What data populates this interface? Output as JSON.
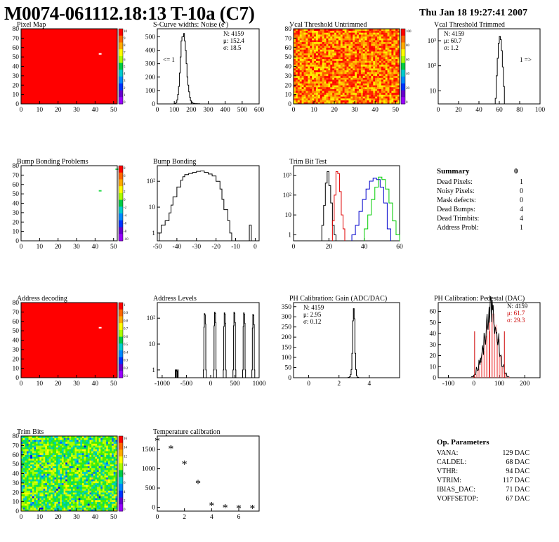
{
  "header": {
    "title": "M0074-061112.18:13 T-10a (C7)",
    "timestamp": "Thu Jan 18 19:27:41 2007"
  },
  "colors": {
    "map_red": "#ff0000",
    "hist_line": "#000000",
    "trim_red": "#e00000",
    "trim_blue": "#0000cc",
    "trim_green": "#00cc00",
    "pedestal_mean": "#cc0000"
  },
  "chart_data": [
    {
      "id": "pixel-map",
      "type": "heatmap",
      "title": "Pixel Map",
      "xticks": [
        "0",
        "10",
        "20",
        "30",
        "40",
        "50"
      ],
      "yticks": [
        "0",
        "10",
        "20",
        "30",
        "40",
        "50",
        "60",
        "70",
        "80"
      ],
      "xlim": [
        0,
        52
      ],
      "ylim": [
        0,
        80
      ],
      "fill": "uniform 10 (all pixels alive)",
      "hot_pixel": {
        "col": 42,
        "row": 53
      },
      "palette_labels": [
        "10",
        "9",
        "8",
        "7",
        "6",
        "5",
        "4",
        "3",
        "2",
        "1",
        "0"
      ]
    },
    {
      "id": "scurve-widths",
      "type": "histogram",
      "title": "S-Curve widths: Noise (e )",
      "xticks": [
        "0",
        "100",
        "200",
        "300",
        "400",
        "500",
        "600"
      ],
      "yticks": [
        "0",
        "100",
        "200",
        "300",
        "400",
        "500"
      ],
      "xlim": [
        0,
        600
      ],
      "ylim": [
        0,
        560
      ],
      "stats": [
        "N: 4159",
        "μ: 152.4",
        "σ: 18.5"
      ],
      "underflow_label": "<= 1",
      "x": [
        0,
        90,
        100,
        110,
        115,
        120,
        125,
        130,
        135,
        140,
        145,
        150,
        155,
        160,
        165,
        170,
        175,
        180,
        185,
        190,
        195,
        200,
        205,
        210,
        220,
        235,
        250,
        600
      ],
      "values": [
        0,
        0,
        3,
        10,
        30,
        70,
        130,
        230,
        350,
        470,
        500,
        500,
        525,
        470,
        400,
        300,
        200,
        140,
        90,
        50,
        25,
        15,
        8,
        4,
        2,
        1,
        0
      ]
    },
    {
      "id": "vcal-untrimmed",
      "type": "heatmap",
      "title": "Vcal Threshold Untrimmed",
      "xticks": [
        "0",
        "10",
        "20",
        "30",
        "40",
        "50"
      ],
      "yticks": [
        "0",
        "10",
        "20",
        "30",
        "40",
        "50",
        "60",
        "70",
        "80"
      ],
      "xlim": [
        0,
        52
      ],
      "ylim": [
        0,
        80
      ],
      "palette_labels": [
        "100",
        "80",
        "60",
        "40",
        "20",
        "0"
      ],
      "value_range": [
        0,
        110
      ],
      "value_center": 60
    },
    {
      "id": "vcal-trimmed",
      "type": "histogram",
      "title": "Vcal Threshold Trimmed",
      "log_y": true,
      "xticks": [
        "0",
        "20",
        "40",
        "60",
        "80",
        "100"
      ],
      "yticks": [
        "10",
        "10²",
        "10³"
      ],
      "xlim": [
        0,
        100
      ],
      "ylim": [
        3,
        3000
      ],
      "stats": [
        "N: 4159",
        "μ: 60.7",
        "σ:  1.2"
      ],
      "overflow_label": "1 =>",
      "x": [
        56,
        57,
        58,
        59,
        60,
        61,
        62,
        63,
        64,
        65,
        66
      ],
      "values": [
        5,
        40,
        200,
        800,
        1500,
        1100,
        400,
        90,
        15,
        3
      ]
    },
    {
      "id": "bump-problems",
      "type": "heatmap",
      "title": "Bump Bonding Problems",
      "xticks": [
        "0",
        "10",
        "20",
        "30",
        "40",
        "50"
      ],
      "yticks": [
        "0",
        "10",
        "20",
        "30",
        "40",
        "50",
        "60",
        "70",
        "80"
      ],
      "xlim": [
        0,
        52
      ],
      "ylim": [
        0,
        80
      ],
      "palette_labels": [
        "8",
        "6",
        "4",
        "2",
        "0",
        "-2",
        "-4",
        "-6",
        "-8",
        "-10"
      ],
      "marked_pixels": [
        {
          "col": 42,
          "row": 53
        },
        {
          "col": 51,
          "row": 76
        }
      ]
    },
    {
      "id": "bump-bonding",
      "type": "histogram",
      "title": "Bump Bonding",
      "log_y": true,
      "xticks": [
        "-50",
        "-40",
        "-30",
        "-20",
        "-10",
        "0"
      ],
      "yticks": [
        "1",
        "10",
        "10²"
      ],
      "xlim": [
        -50,
        2
      ],
      "ylim": [
        0.5,
        400
      ],
      "x": [
        -49,
        -48,
        -46,
        -44,
        -43,
        -42,
        -40,
        -38,
        -37,
        -36,
        -34,
        -32,
        -30,
        -28,
        -26,
        -24,
        -22,
        -20,
        -18,
        -17,
        -16,
        -14,
        -13,
        -12,
        -3,
        -2,
        -1
      ],
      "values": [
        1,
        2,
        3,
        6,
        12,
        25,
        60,
        110,
        150,
        180,
        200,
        220,
        240,
        250,
        220,
        190,
        160,
        100,
        50,
        20,
        8,
        3,
        1,
        0,
        2,
        0
      ]
    },
    {
      "id": "trim-bit-test",
      "type": "histogram",
      "title": "Trim Bit Test",
      "log_y": true,
      "xticks": [
        "0",
        "20",
        "40",
        "60"
      ],
      "yticks": [
        "1",
        "10",
        "10²",
        "10³"
      ],
      "xlim": [
        0,
        60
      ],
      "ylim": [
        0.5,
        3000
      ],
      "series": [
        {
          "color": "#000000",
          "x": [
            16,
            17,
            18,
            19,
            20,
            21,
            22,
            23,
            24
          ],
          "values": [
            3,
            30,
            400,
            1500,
            300,
            40,
            3,
            1
          ]
        },
        {
          "color": "#e00000",
          "x": [
            22,
            23,
            24,
            25,
            26,
            27,
            28,
            29
          ],
          "values": [
            5,
            100,
            1500,
            1200,
            150,
            10,
            2
          ]
        },
        {
          "color": "#0000cc",
          "x": [
            33,
            35,
            37,
            39,
            41,
            43,
            45,
            47,
            49,
            51,
            53,
            55
          ],
          "values": [
            1,
            3,
            15,
            60,
            200,
            500,
            700,
            600,
            250,
            40,
            2
          ]
        },
        {
          "color": "#00cc00",
          "x": [
            40,
            42,
            44,
            46,
            48,
            50,
            52,
            54,
            56,
            58,
            60
          ],
          "values": [
            2,
            10,
            60,
            250,
            800,
            600,
            200,
            40,
            5,
            1
          ]
        }
      ]
    },
    {
      "id": "address-decoding",
      "type": "heatmap",
      "title": "Address decoding",
      "xticks": [
        "0",
        "10",
        "20",
        "30",
        "40",
        "50"
      ],
      "yticks": [
        "0",
        "10",
        "20",
        "30",
        "40",
        "50",
        "60",
        "70",
        "80"
      ],
      "xlim": [
        0,
        52
      ],
      "ylim": [
        0,
        80
      ],
      "fill": "uniform 1 (all addresses decoded)",
      "hot_pixel": {
        "col": 42,
        "row": 53
      },
      "palette_labels": [
        "1",
        "0.9",
        "0.8",
        "0.7",
        "0.6",
        "0.5",
        "0.4",
        "0.3",
        "0.2",
        "0.1"
      ]
    },
    {
      "id": "address-levels",
      "type": "histogram",
      "title": "Address Levels",
      "log_y": true,
      "xticks": [
        "-1000",
        "-500",
        "0",
        "500",
        "1000"
      ],
      "yticks": [
        "1",
        "10",
        "10²"
      ],
      "xlim": [
        -1100,
        1000
      ],
      "ylim": [
        0.5,
        400
      ],
      "peaks": [
        -700,
        -120,
        90,
        290,
        490,
        690,
        880
      ],
      "peak_heights": [
        1,
        150,
        170,
        160,
        170,
        160,
        140
      ]
    },
    {
      "id": "ph-gain",
      "type": "histogram",
      "title": "PH Calibration: Gain (ADC/DAC)",
      "xticks": [
        "0",
        "2",
        "4"
      ],
      "yticks": [
        "0",
        "50",
        "100",
        "150",
        "200",
        "250",
        "300",
        "350"
      ],
      "xlim": [
        -1,
        6
      ],
      "ylim": [
        0,
        370
      ],
      "stats": [
        "N: 4159",
        "μ: 2.95",
        "σ: 0.12"
      ],
      "x": [
        2.6,
        2.7,
        2.75,
        2.8,
        2.85,
        2.9,
        2.95,
        3.0,
        3.05,
        3.1,
        3.15,
        3.2,
        3.3
      ],
      "values": [
        2,
        5,
        15,
        40,
        120,
        280,
        340,
        290,
        120,
        40,
        10,
        2
      ]
    },
    {
      "id": "ph-pedestal",
      "type": "histogram",
      "title": "PH Calibration: Pedestal (DAC)",
      "xticks": [
        "-100",
        "0",
        "100",
        "200"
      ],
      "yticks": [
        "0",
        "10",
        "20",
        "30",
        "40",
        "50",
        "60"
      ],
      "xlim": [
        -140,
        260
      ],
      "ylim": [
        0,
        68
      ],
      "stats": [
        "N: 4159",
        "μ: 61.7",
        "σ: 29.3"
      ],
      "markers": [
        3,
        61.7,
        120
      ],
      "x": [
        -10,
        0,
        10,
        20,
        30,
        40,
        50,
        60,
        70,
        80,
        90,
        100,
        110,
        120,
        130,
        140
      ],
      "values": [
        1,
        3,
        8,
        15,
        24,
        38,
        50,
        60,
        58,
        48,
        35,
        20,
        10,
        4,
        1
      ]
    },
    {
      "id": "trim-bits",
      "type": "heatmap",
      "title": "Trim Bits",
      "xticks": [
        "0",
        "10",
        "20",
        "30",
        "40",
        "50"
      ],
      "yticks": [
        "0",
        "10",
        "20",
        "30",
        "40",
        "50",
        "60",
        "70",
        "80"
      ],
      "xlim": [
        0,
        52
      ],
      "ylim": [
        0,
        80
      ],
      "palette_labels": [
        "16",
        "14",
        "12",
        "10",
        "8",
        "6",
        "4",
        "2",
        "0"
      ],
      "value_range": [
        0,
        16
      ],
      "value_center": 7
    },
    {
      "id": "temperature-calibration",
      "type": "scatter",
      "title": "Temperature calibration",
      "xticks": [
        "0",
        "2",
        "4",
        "6"
      ],
      "yticks": [
        "0",
        "500",
        "1000",
        "1500"
      ],
      "xlim": [
        0,
        7.5
      ],
      "ylim": [
        -100,
        1850
      ],
      "x": [
        0,
        1,
        2,
        3,
        4,
        5,
        6,
        7
      ],
      "values": [
        1750,
        1550,
        1150,
        650,
        70,
        20,
        0,
        0
      ]
    }
  ],
  "summary": {
    "title": "Summary",
    "title_value": "0",
    "rows": [
      {
        "label": "Dead Pixels:",
        "value": "1"
      },
      {
        "label": "Noisy Pixels:",
        "value": "0"
      },
      {
        "label": "Mask defects:",
        "value": "0"
      },
      {
        "label": "Dead Bumps:",
        "value": "4"
      },
      {
        "label": "Dead Trimbits:",
        "value": "4"
      },
      {
        "label": "Address Probl:",
        "value": "1"
      }
    ]
  },
  "op_parameters": {
    "title": "Op. Parameters",
    "rows": [
      {
        "label": "VANA:",
        "value": "129 DAC"
      },
      {
        "label": "CALDEL:",
        "value": "68 DAC"
      },
      {
        "label": "VTHR:",
        "value": "94 DAC"
      },
      {
        "label": "VTRIM:",
        "value": "117 DAC"
      },
      {
        "label": "IBIAS_DAC:",
        "value": "71 DAC"
      },
      {
        "label": "VOFFSETOP:",
        "value": "67 DAC"
      }
    ]
  }
}
